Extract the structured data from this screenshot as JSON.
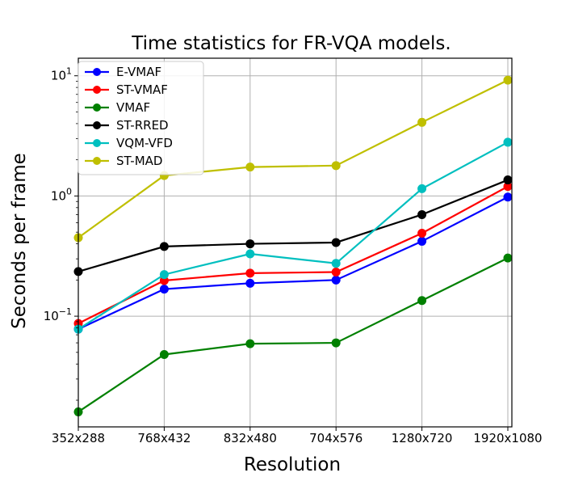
{
  "chart_data": {
    "type": "line",
    "title": "Time statistics for FR-VQA models.",
    "xlabel": "Resolution",
    "ylabel": "Seconds per frame",
    "yscale": "log",
    "ylim": [
      0.012,
      14
    ],
    "y_ticks": [
      {
        "value": 0.1,
        "base": "10",
        "exp": "−1"
      },
      {
        "value": 1,
        "base": "10",
        "exp": "0"
      },
      {
        "value": 10,
        "base": "10",
        "exp": "1"
      }
    ],
    "grid": true,
    "legend_position": "upper-left",
    "categories": [
      "352x288",
      "768x432",
      "832x480",
      "704x576",
      "1280x720",
      "1920x1080"
    ],
    "series": [
      {
        "name": "E-VMAF",
        "color": "#0000ff",
        "values": [
          0.078,
          0.168,
          0.188,
          0.2,
          0.42,
          0.98
        ]
      },
      {
        "name": "ST-VMAF",
        "color": "#ff0000",
        "values": [
          0.087,
          0.198,
          0.228,
          0.233,
          0.49,
          1.2
        ]
      },
      {
        "name": "VMAF",
        "color": "#008000",
        "values": [
          0.016,
          0.048,
          0.059,
          0.06,
          0.135,
          0.305
        ]
      },
      {
        "name": "ST-RRED",
        "color": "#000000",
        "values": [
          0.235,
          0.38,
          0.4,
          0.41,
          0.7,
          1.36
        ]
      },
      {
        "name": "VQM-VFD",
        "color": "#00bfbf",
        "values": [
          0.078,
          0.222,
          0.33,
          0.275,
          1.15,
          2.8
        ]
      },
      {
        "name": "ST-MAD",
        "color": "#bfbf00",
        "values": [
          0.45,
          1.48,
          1.74,
          1.79,
          4.1,
          9.2
        ]
      }
    ]
  }
}
